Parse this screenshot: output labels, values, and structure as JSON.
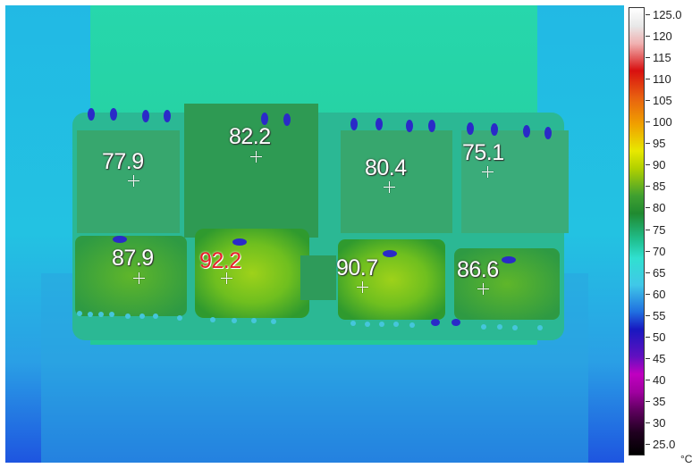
{
  "image": {
    "kind": "thermal-camera-image",
    "subject": "circuit-board"
  },
  "spot_readings": [
    {
      "value": "77.9",
      "color": "#ffffff"
    },
    {
      "value": "82.2",
      "color": "#ffffff"
    },
    {
      "value": "80.4",
      "color": "#ffffff"
    },
    {
      "value": "75.1",
      "color": "#ffffff"
    },
    {
      "value": "87.9",
      "color": "#ffffff"
    },
    {
      "value": "92.2",
      "color": "#e8202c"
    },
    {
      "value": "90.7",
      "color": "#ffffff"
    },
    {
      "value": "86.6",
      "color": "#ffffff"
    }
  ],
  "color_scale": {
    "unit": "°C",
    "max_label": "125.0",
    "min_label": "25.0",
    "tick_labels": [
      "125.0",
      "120",
      "115",
      "110",
      "105",
      "100",
      "95",
      "90",
      "85",
      "80",
      "75",
      "70",
      "65",
      "60",
      "55",
      "50",
      "45",
      "40",
      "35",
      "30",
      "25.0"
    ]
  }
}
